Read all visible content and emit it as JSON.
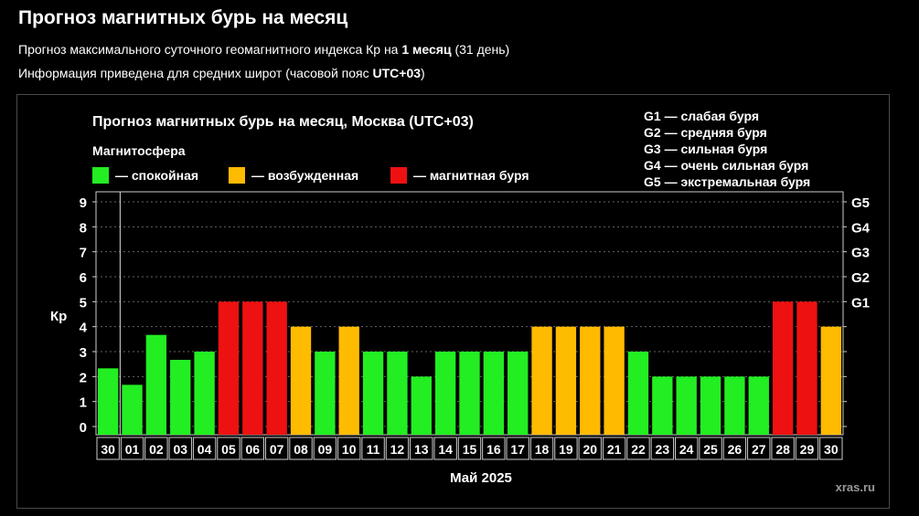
{
  "header": {
    "title": "Прогноз магнитных бурь на месяц",
    "line1_pre": "Прогноз максимального суточного геомагнитного индекса Кр на ",
    "line1_bold": "1 месяц",
    "line1_post": " (31 день)",
    "line2_pre": "Информация приведена для средних широт (часовой пояс ",
    "line2_bold": "UTC+03",
    "line2_post": ")"
  },
  "chart_data": {
    "type": "bar",
    "title": "Прогноз магнитных бурь на месяц, Москва (UTC+03)",
    "legend_title": "Магнитосфера",
    "legend": [
      {
        "label": "— спокойная",
        "color": "#22ee22"
      },
      {
        "label": "— возбужденная",
        "color": "#ffbb00"
      },
      {
        "label": "— магнитная буря",
        "color": "#ee1111"
      }
    ],
    "g_legend": [
      "G1 — слабая буря",
      "G2 — средняя буря",
      "G3 — сильная буря",
      "G4 — очень сильная буря",
      "G5 — экстремальная буря"
    ],
    "xlabel": "Май 2025",
    "ylabel": "Кр",
    "ylim": [
      0,
      9
    ],
    "yticks": [
      "0",
      "1",
      "2",
      "3",
      "4",
      "5",
      "6",
      "7",
      "8",
      "9"
    ],
    "right_ticks": [
      {
        "value": 5,
        "label": "G1"
      },
      {
        "value": 6,
        "label": "G2"
      },
      {
        "value": 7,
        "label": "G3"
      },
      {
        "value": 8,
        "label": "G4"
      },
      {
        "value": 9,
        "label": "G5"
      }
    ],
    "categories": [
      "30",
      "01",
      "02",
      "03",
      "04",
      "05",
      "06",
      "07",
      "08",
      "09",
      "10",
      "11",
      "12",
      "13",
      "14",
      "15",
      "16",
      "17",
      "18",
      "19",
      "20",
      "21",
      "22",
      "23",
      "24",
      "25",
      "26",
      "27",
      "28",
      "29",
      "30"
    ],
    "values": [
      2.33,
      1.67,
      3.67,
      2.67,
      3,
      5,
      5,
      5,
      4,
      3,
      4,
      3,
      3,
      2,
      3,
      3,
      3,
      3,
      4,
      4,
      4,
      4,
      3,
      2,
      2,
      2,
      2,
      2,
      5,
      5,
      4
    ],
    "colors": {
      "calm": "#22ee22",
      "excited": "#ffbb00",
      "storm": "#ee1111"
    },
    "grid": true
  },
  "watermark": "xras.ru"
}
